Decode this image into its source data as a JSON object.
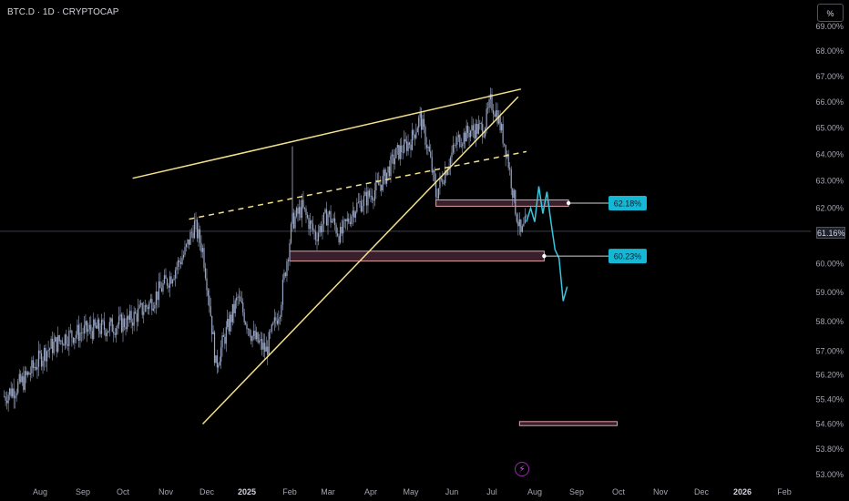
{
  "header": {
    "symbol": "BTC.D · 1D · CRYPTOCAP"
  },
  "toolbar": {
    "percent_label": "%"
  },
  "last_price_label": "61.16%",
  "colors": {
    "background": "#000000",
    "candle": "#9aa7c7",
    "trendline": "#f5e08a",
    "projection": "#36c6e0",
    "zone_border": "#e0a0a8",
    "zone_fill": "#3a1f2d",
    "label_bg": "#14b8d4"
  },
  "chart_data": {
    "type": "line",
    "title": "BTC.D · 1D · CRYPTOCAP",
    "x_tick_labels": [
      "Aug",
      "Sep",
      "Oct",
      "Nov",
      "Dec",
      "2025",
      "Feb",
      "Mar",
      "Apr",
      "May",
      "Jun",
      "Jul",
      "Aug",
      "Sep",
      "Oct",
      "Nov",
      "Dec",
      "2026",
      "Feb"
    ],
    "y_tick_labels": [
      "69.00%",
      "68.00%",
      "67.00%",
      "66.00%",
      "65.00%",
      "64.00%",
      "63.00%",
      "62.00%",
      "61.00%",
      "60.00%",
      "59.00%",
      "58.00%",
      "57.00%",
      "56.20%",
      "55.40%",
      "54.60%",
      "53.80%",
      "53.00%"
    ],
    "ylim": [
      53.0,
      69.0
    ],
    "y_scale": "log",
    "series": [
      {
        "x": [
          "2024-07-06",
          "2024-07-20",
          "2024-08-05",
          "2024-08-20",
          "2024-09-05",
          "2024-09-20",
          "2024-10-05",
          "2024-10-20",
          "2024-11-05",
          "2024-11-15",
          "2024-11-22",
          "2024-11-28",
          "2024-12-03",
          "2024-12-08",
          "2024-12-15",
          "2024-12-25",
          "2025-01-05",
          "2025-01-15",
          "2025-01-25",
          "2025-02-03",
          "2025-02-10",
          "2025-02-20",
          "2025-03-01",
          "2025-03-10",
          "2025-03-20",
          "2025-04-01",
          "2025-04-10",
          "2025-04-20",
          "2025-05-01",
          "2025-05-08",
          "2025-05-15",
          "2025-05-20",
          "2025-05-28",
          "2025-06-05",
          "2025-06-15",
          "2025-06-25",
          "2025-06-30",
          "2025-07-05",
          "2025-07-12",
          "2025-07-18",
          "2025-07-22",
          "2025-07-26"
        ],
        "values": [
          55.5,
          56.0,
          57.0,
          57.5,
          57.7,
          57.8,
          58.0,
          58.6,
          59.6,
          60.4,
          61.4,
          60.5,
          58.7,
          56.5,
          57.5,
          58.8,
          57.5,
          57.0,
          58.5,
          61.5,
          62.0,
          61.0,
          61.8,
          61.0,
          62.0,
          62.5,
          63.0,
          64.0,
          64.5,
          65.4,
          64.0,
          62.5,
          63.5,
          64.5,
          64.9,
          65.0,
          66.0,
          65.5,
          64.0,
          62.0,
          61.0,
          61.5
        ]
      },
      {
        "x": [
          "2025-07-26",
          "2025-07-29",
          "2025-08-01",
          "2025-08-04",
          "2025-08-07",
          "2025-08-10",
          "2025-08-13",
          "2025-08-16",
          "2025-08-19",
          "2025-08-22",
          "2025-08-25"
        ],
        "values": [
          61.5,
          62.0,
          61.5,
          62.8,
          61.8,
          62.6,
          61.5,
          60.5,
          60.2,
          58.7,
          59.2
        ]
      }
    ],
    "annotations": [
      {
        "type": "zone",
        "y_range": [
          62.07,
          62.3
        ],
        "x_range": [
          "2025-05-20",
          "2025-08-26"
        ],
        "label": "62.18%"
      },
      {
        "type": "zone",
        "y_range": [
          60.1,
          60.45
        ],
        "x_range": [
          "2025-02-01",
          "2025-08-08"
        ],
        "label": "60.23%"
      },
      {
        "type": "zone",
        "y_range": [
          54.55,
          54.68
        ],
        "x_range": [
          "2025-07-21",
          "2025-09-30"
        ]
      },
      {
        "type": "trendline",
        "points": [
          [
            "2024-10-08",
            63.1
          ],
          [
            "2025-07-22",
            66.5
          ]
        ]
      },
      {
        "type": "trendline",
        "points": [
          [
            "2024-11-28",
            54.6
          ],
          [
            "2025-07-20",
            66.2
          ]
        ]
      },
      {
        "type": "trendline",
        "style": "dashed",
        "points": [
          [
            "2024-11-18",
            61.6
          ],
          [
            "2025-07-26",
            64.1
          ]
        ]
      },
      {
        "type": "vertical_line",
        "x": "2025-02-03",
        "y_range": [
          61.8,
          64.3
        ]
      }
    ],
    "grid": false,
    "legend": "none"
  }
}
